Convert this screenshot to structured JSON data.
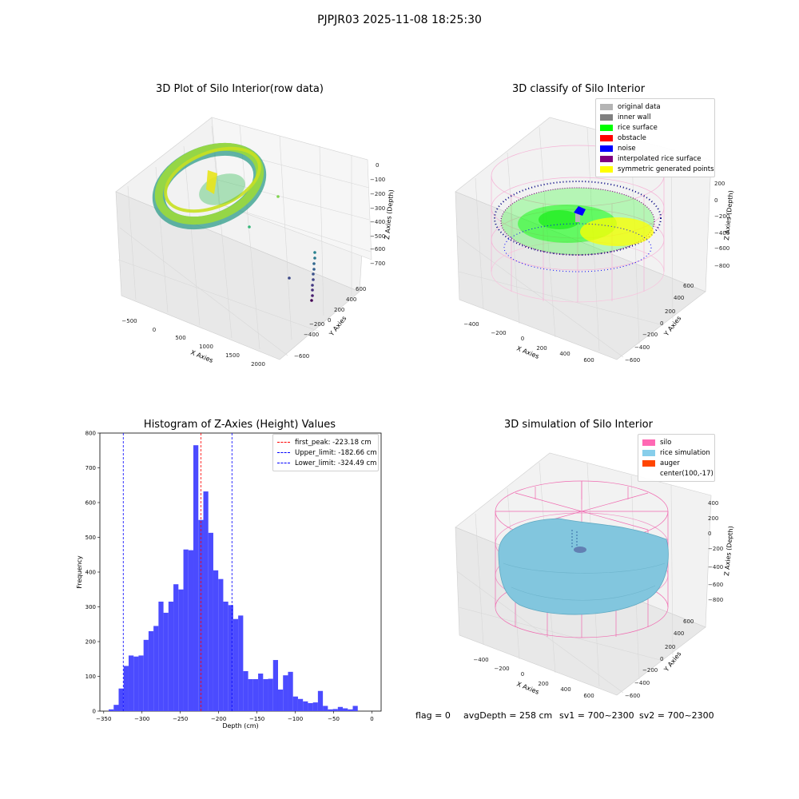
{
  "suptitle": "PJPJR03 2025-11-08 18:25:30",
  "colors": {
    "hist_bar": "#4b4bff",
    "first_peak_line": "#ff0000",
    "limit_line": "#0000ff",
    "silo_mesh": "#f39cc9",
    "rice_sim": "#82c6de",
    "grid_pane": "#f0f0f0",
    "grid_line": "#d6d6d6"
  },
  "panel1": {
    "title": "3D Plot of Silo Interior(row data)",
    "xlabel": "X Axies",
    "ylabel": "Y Axies",
    "zlabel": "Z Axies (Depth)",
    "xticks": [
      "−500",
      "0",
      "500",
      "1000",
      "1500",
      "2000"
    ],
    "yticks": [
      "−600",
      "−400",
      "−200",
      "0",
      "200",
      "400",
      "600"
    ],
    "zticks": [
      "0",
      "−100",
      "−200",
      "−300",
      "−400",
      "−500",
      "−600",
      "−700"
    ],
    "colormap": "viridis"
  },
  "panel2": {
    "title": "3D classify of Silo Interior",
    "xlabel": "X Axies",
    "ylabel": "Y Axies",
    "zlabel": "Z Axies (Depth)",
    "xticks": [
      "−400",
      "−200",
      "0",
      "200",
      "400",
      "600"
    ],
    "yticks": [
      "−600",
      "−400",
      "−200",
      "0",
      "200",
      "400",
      "600"
    ],
    "zticks": [
      "200",
      "0",
      "−200",
      "−400",
      "−600",
      "−800"
    ],
    "legend": [
      {
        "label": "original data",
        "color": "#b4b4b4"
      },
      {
        "label": "inner wall",
        "color": "#808080"
      },
      {
        "label": "rice surface",
        "color": "#00ff00"
      },
      {
        "label": "obstacle",
        "color": "#ff0000"
      },
      {
        "label": "noise",
        "color": "#0000ff"
      },
      {
        "label": "interpolated rice surface",
        "color": "#800080"
      },
      {
        "label": "symmetric generated points",
        "color": "#ffff00"
      }
    ]
  },
  "panel4": {
    "title": "3D simulation of Silo Interior",
    "xlabel": "X Axies",
    "ylabel": "Y Axies",
    "zlabel": "Z Axies (Depth)",
    "xticks": [
      "−400",
      "−200",
      "0",
      "200",
      "400",
      "600"
    ],
    "yticks": [
      "−600",
      "−400",
      "−200",
      "0",
      "200",
      "400",
      "600"
    ],
    "zticks": [
      "400",
      "200",
      "0",
      "−200",
      "−400",
      "−600",
      "−800"
    ],
    "legend": [
      {
        "label": "silo",
        "color": "#ff69b4"
      },
      {
        "label": "rice simulation",
        "color": "#87ceeb"
      },
      {
        "label": "auger",
        "color": "#ff4500"
      },
      {
        "label": "center(100,-17)",
        "color": ""
      }
    ]
  },
  "chart_data": {
    "type": "bar",
    "title": "Histogram of Z-Axies (Height) Values",
    "xlabel": "Depth (cm)",
    "ylabel": "Frequency",
    "xlim": [
      -355,
      12
    ],
    "ylim": [
      0,
      800
    ],
    "xticks": [
      -350,
      -300,
      -250,
      -200,
      -150,
      -100,
      -50,
      0
    ],
    "yticks": [
      0,
      100,
      200,
      300,
      400,
      500,
      600,
      700,
      800
    ],
    "bin_width": 6.5,
    "bin_start": -343.5,
    "values": [
      5,
      18,
      65,
      130,
      160,
      157,
      160,
      205,
      230,
      245,
      315,
      283,
      315,
      365,
      350,
      465,
      463,
      765,
      550,
      632,
      513,
      405,
      380,
      315,
      305,
      265,
      275,
      115,
      92,
      92,
      108,
      92,
      93,
      147,
      62,
      103,
      113,
      42,
      35,
      28,
      23,
      25,
      58,
      15,
      5,
      6,
      12,
      8,
      5,
      15
    ],
    "lines": [
      {
        "label": "first_peak: -223.18 cm",
        "x": -223.18,
        "color": "#ff0000"
      },
      {
        "label": "Upper_limit: -182.66 cm",
        "x": -182.66,
        "color": "#0000ff"
      },
      {
        "label": "Lower_limit: -324.49 cm",
        "x": -324.49,
        "color": "#0000ff"
      }
    ]
  },
  "bottom": {
    "flag": "flag = 0",
    "avgdepth": "avgDepth = 258 cm",
    "sv1": "sv1 = 700~2300",
    "sv2": "sv2 = 700~2300"
  }
}
